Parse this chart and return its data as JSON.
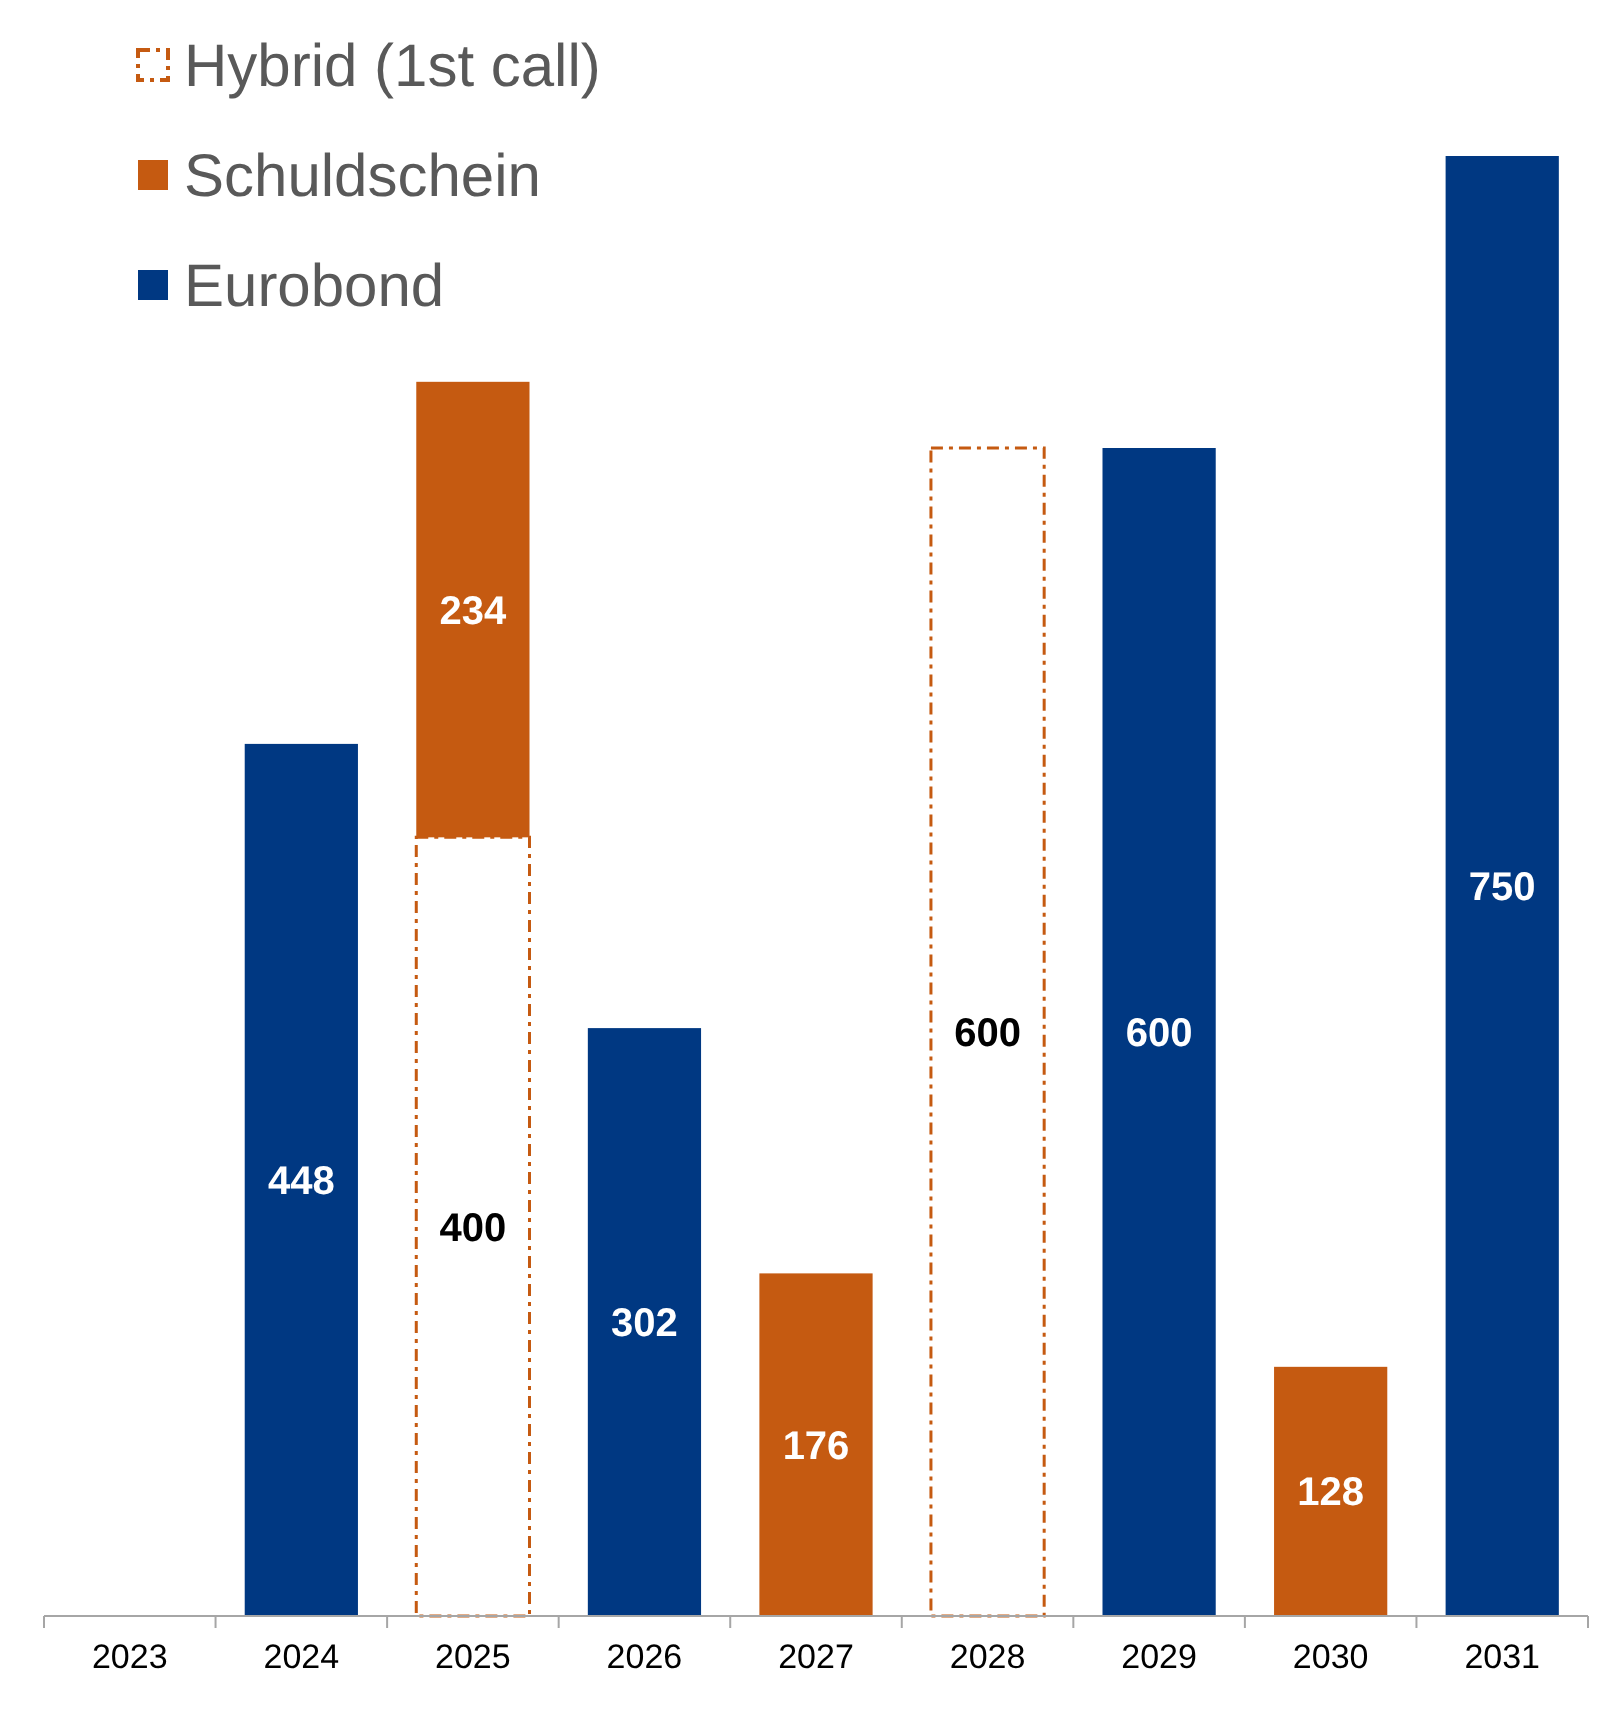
{
  "chart_data": {
    "type": "bar",
    "stacked": true,
    "data_labels": true,
    "legend": "top left",
    "categories": [
      "2023",
      "2024",
      "2025",
      "2026",
      "2027",
      "2028",
      "2029",
      "2030",
      "2031"
    ],
    "series": [
      {
        "name": "Eurobond",
        "color": "#003882",
        "values": [
          null,
          448,
          null,
          302,
          null,
          null,
          600,
          null,
          750
        ]
      },
      {
        "name": "Hybrid (1st call)",
        "color": "#c55a11",
        "line_style": "dashed",
        "values": [
          null,
          null,
          400,
          null,
          null,
          600,
          null,
          null,
          null
        ]
      },
      {
        "name": "Schuldschein",
        "color": "#c55a11",
        "values": [
          null,
          null,
          234,
          null,
          176,
          null,
          null,
          128,
          null
        ]
      }
    ]
  }
}
